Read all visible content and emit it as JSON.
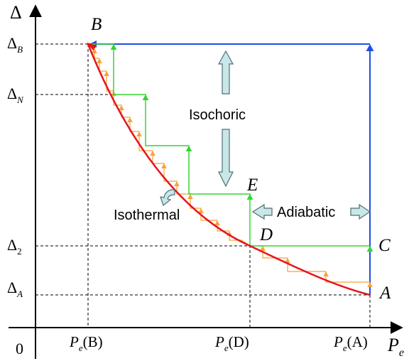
{
  "axes": {
    "y_symbol": "Δ",
    "origin": "0",
    "x_symbol": "P",
    "x_subscript": "e"
  },
  "y_ticks": [
    {
      "base": "Δ",
      "sub": "B"
    },
    {
      "base": "Δ",
      "sub": "N"
    },
    {
      "base": "Δ",
      "sub": "2"
    },
    {
      "base": "Δ",
      "sub": "A"
    }
  ],
  "x_ticks": [
    {
      "p": "P",
      "sub": "e",
      "arg": "(B)"
    },
    {
      "p": "P",
      "sub": "e",
      "arg": "(D)"
    },
    {
      "p": "P",
      "sub": "e",
      "arg": "(A)"
    }
  ],
  "points": {
    "A": "A",
    "B": "B",
    "C": "C",
    "D": "D",
    "E": "E"
  },
  "labels": {
    "isochoric": "Isochoric",
    "isothermal": "Isothermal",
    "adiabatic": "Adiabatic"
  },
  "colors": {
    "curve": "#e8141b",
    "blue_path": "#1f4fe0",
    "green_steps": "#33d633",
    "orange_steps": "#f7a23a",
    "arrow_fill": "#c9e6e9",
    "arrow_stroke": "#4f6f74",
    "axis": "#000000",
    "guides": "#000000"
  }
}
